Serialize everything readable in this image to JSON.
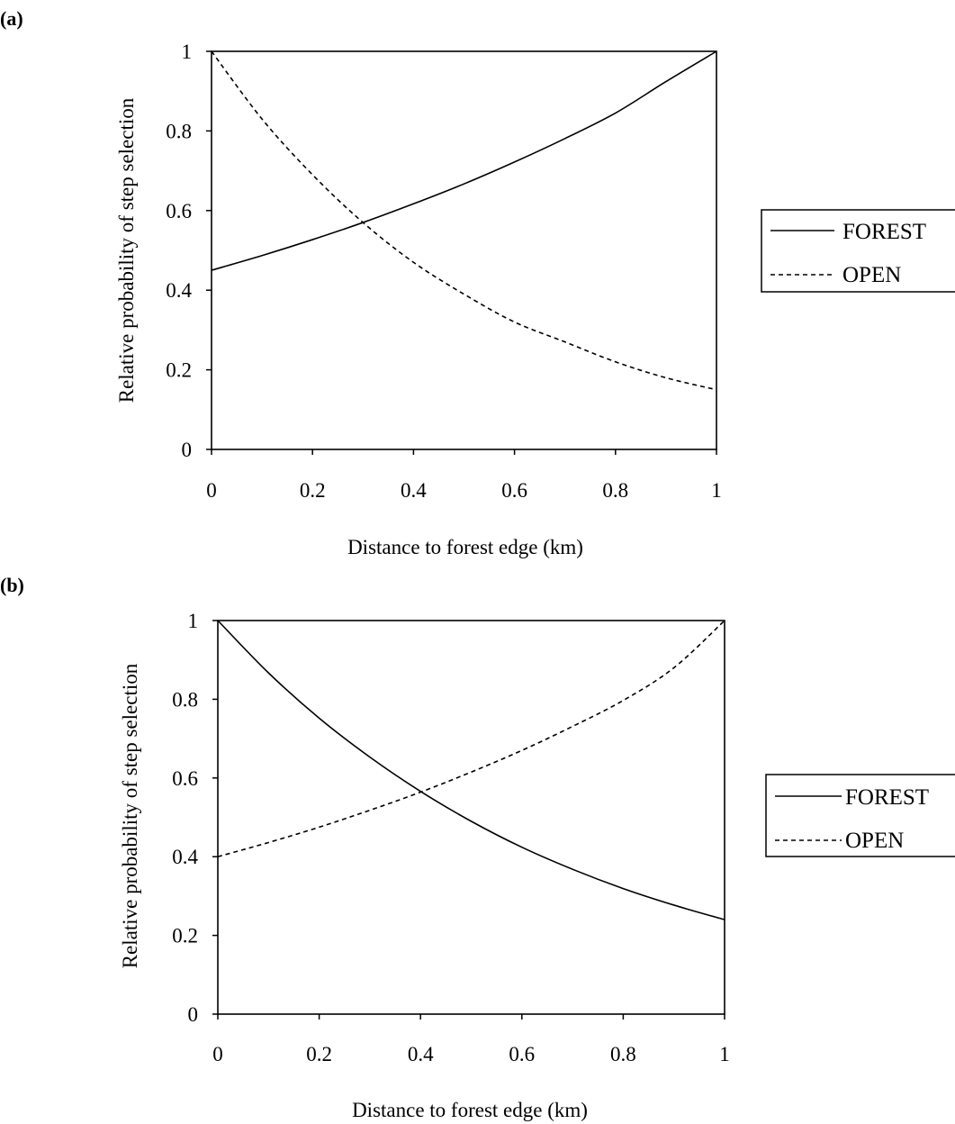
{
  "chart_data": [
    {
      "type": "line",
      "panel_label": "(a)",
      "xlabel": "Distance to forest edge (km)",
      "ylabel": "Relative probability of step selection",
      "xlim": [
        0,
        1
      ],
      "ylim": [
        0,
        1
      ],
      "x_ticks": [
        "0",
        "0.2",
        "0.4",
        "0.6",
        "0.8",
        "1"
      ],
      "y_ticks": [
        "0",
        "0.2",
        "0.4",
        "0.6",
        "0.8",
        "1"
      ],
      "grid": false,
      "legend_position": "right",
      "x": [
        0,
        0.1,
        0.2,
        0.3,
        0.4,
        0.5,
        0.6,
        0.7,
        0.8,
        0.9,
        1.0
      ],
      "series": [
        {
          "name": "FOREST",
          "style": "solid",
          "values": [
            0.45,
            0.487,
            0.527,
            0.57,
            0.617,
            0.667,
            0.722,
            0.781,
            0.845,
            0.924,
            1.0
          ]
        },
        {
          "name": "OPEN",
          "style": "dashed",
          "values": [
            1.0,
            0.83,
            0.69,
            0.57,
            0.47,
            0.39,
            0.32,
            0.27,
            0.22,
            0.18,
            0.15
          ]
        }
      ]
    },
    {
      "type": "line",
      "panel_label": "(b)",
      "xlabel": "Distance to forest edge (km)",
      "ylabel": "Relative probability of step selection",
      "xlim": [
        0,
        1
      ],
      "ylim": [
        0,
        1
      ],
      "x_ticks": [
        "0",
        "0.2",
        "0.4",
        "0.6",
        "0.8",
        "1"
      ],
      "y_ticks": [
        "0",
        "0.2",
        "0.4",
        "0.6",
        "0.8",
        "1"
      ],
      "grid": false,
      "legend_position": "right",
      "x": [
        0,
        0.1,
        0.2,
        0.3,
        0.4,
        0.5,
        0.6,
        0.7,
        0.8,
        0.9,
        1.0
      ],
      "series": [
        {
          "name": "FOREST",
          "style": "solid",
          "values": [
            1.0,
            0.867,
            0.752,
            0.653,
            0.566,
            0.49,
            0.424,
            0.368,
            0.319,
            0.277,
            0.24
          ]
        },
        {
          "name": "OPEN",
          "style": "dashed",
          "values": [
            0.4,
            0.436,
            0.475,
            0.518,
            0.564,
            0.615,
            0.67,
            0.731,
            0.797,
            0.88,
            1.0
          ]
        }
      ]
    }
  ]
}
